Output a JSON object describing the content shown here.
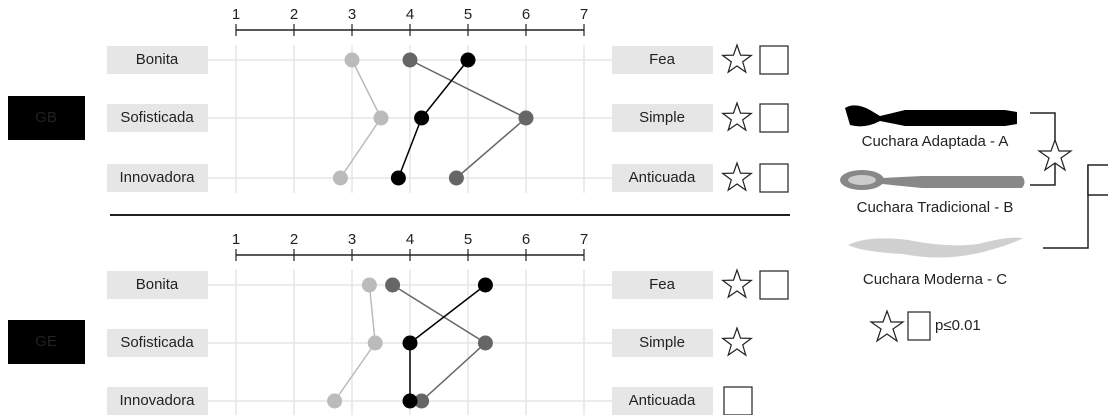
{
  "chart_data": [
    {
      "type": "line",
      "title": "GB",
      "categories": [
        "Bonita",
        "Sofisticada",
        "Innovadora"
      ],
      "right_categories": [
        "Fea",
        "Simple",
        "Anticuada"
      ],
      "xlim": [
        1,
        7
      ],
      "xticks": [
        1,
        2,
        3,
        4,
        5,
        6,
        7
      ],
      "grid": true,
      "series": [
        {
          "name": "Cuchara Adaptada - A",
          "color": "#000000",
          "values": [
            5.0,
            4.2,
            3.8
          ]
        },
        {
          "name": "Cuchara Tradicional - B",
          "color": "#666666",
          "values": [
            4.0,
            6.0,
            4.8
          ]
        },
        {
          "name": "Cuchara Moderna - C",
          "color": "#bbbbbb",
          "values": [
            3.0,
            3.5,
            2.8
          ]
        }
      ]
    },
    {
      "type": "line",
      "title": "GE",
      "categories": [
        "Bonita",
        "Sofisticada",
        "Innovadora"
      ],
      "right_categories": [
        "Fea",
        "Simple",
        "Anticuada"
      ],
      "xlim": [
        1,
        7
      ],
      "xticks": [
        1,
        2,
        3,
        4,
        5,
        6,
        7
      ],
      "grid": true,
      "series": [
        {
          "color": "#000000",
          "values": [
            5.3,
            4.0,
            4.0
          ]
        },
        {
          "color": "#666666",
          "values": [
            3.7,
            5.3,
            4.2
          ]
        },
        {
          "color": "#bbbbbb",
          "values": [
            3.3,
            3.4,
            2.7
          ]
        }
      ]
    }
  ],
  "legend_note": "p≤0.01"
}
